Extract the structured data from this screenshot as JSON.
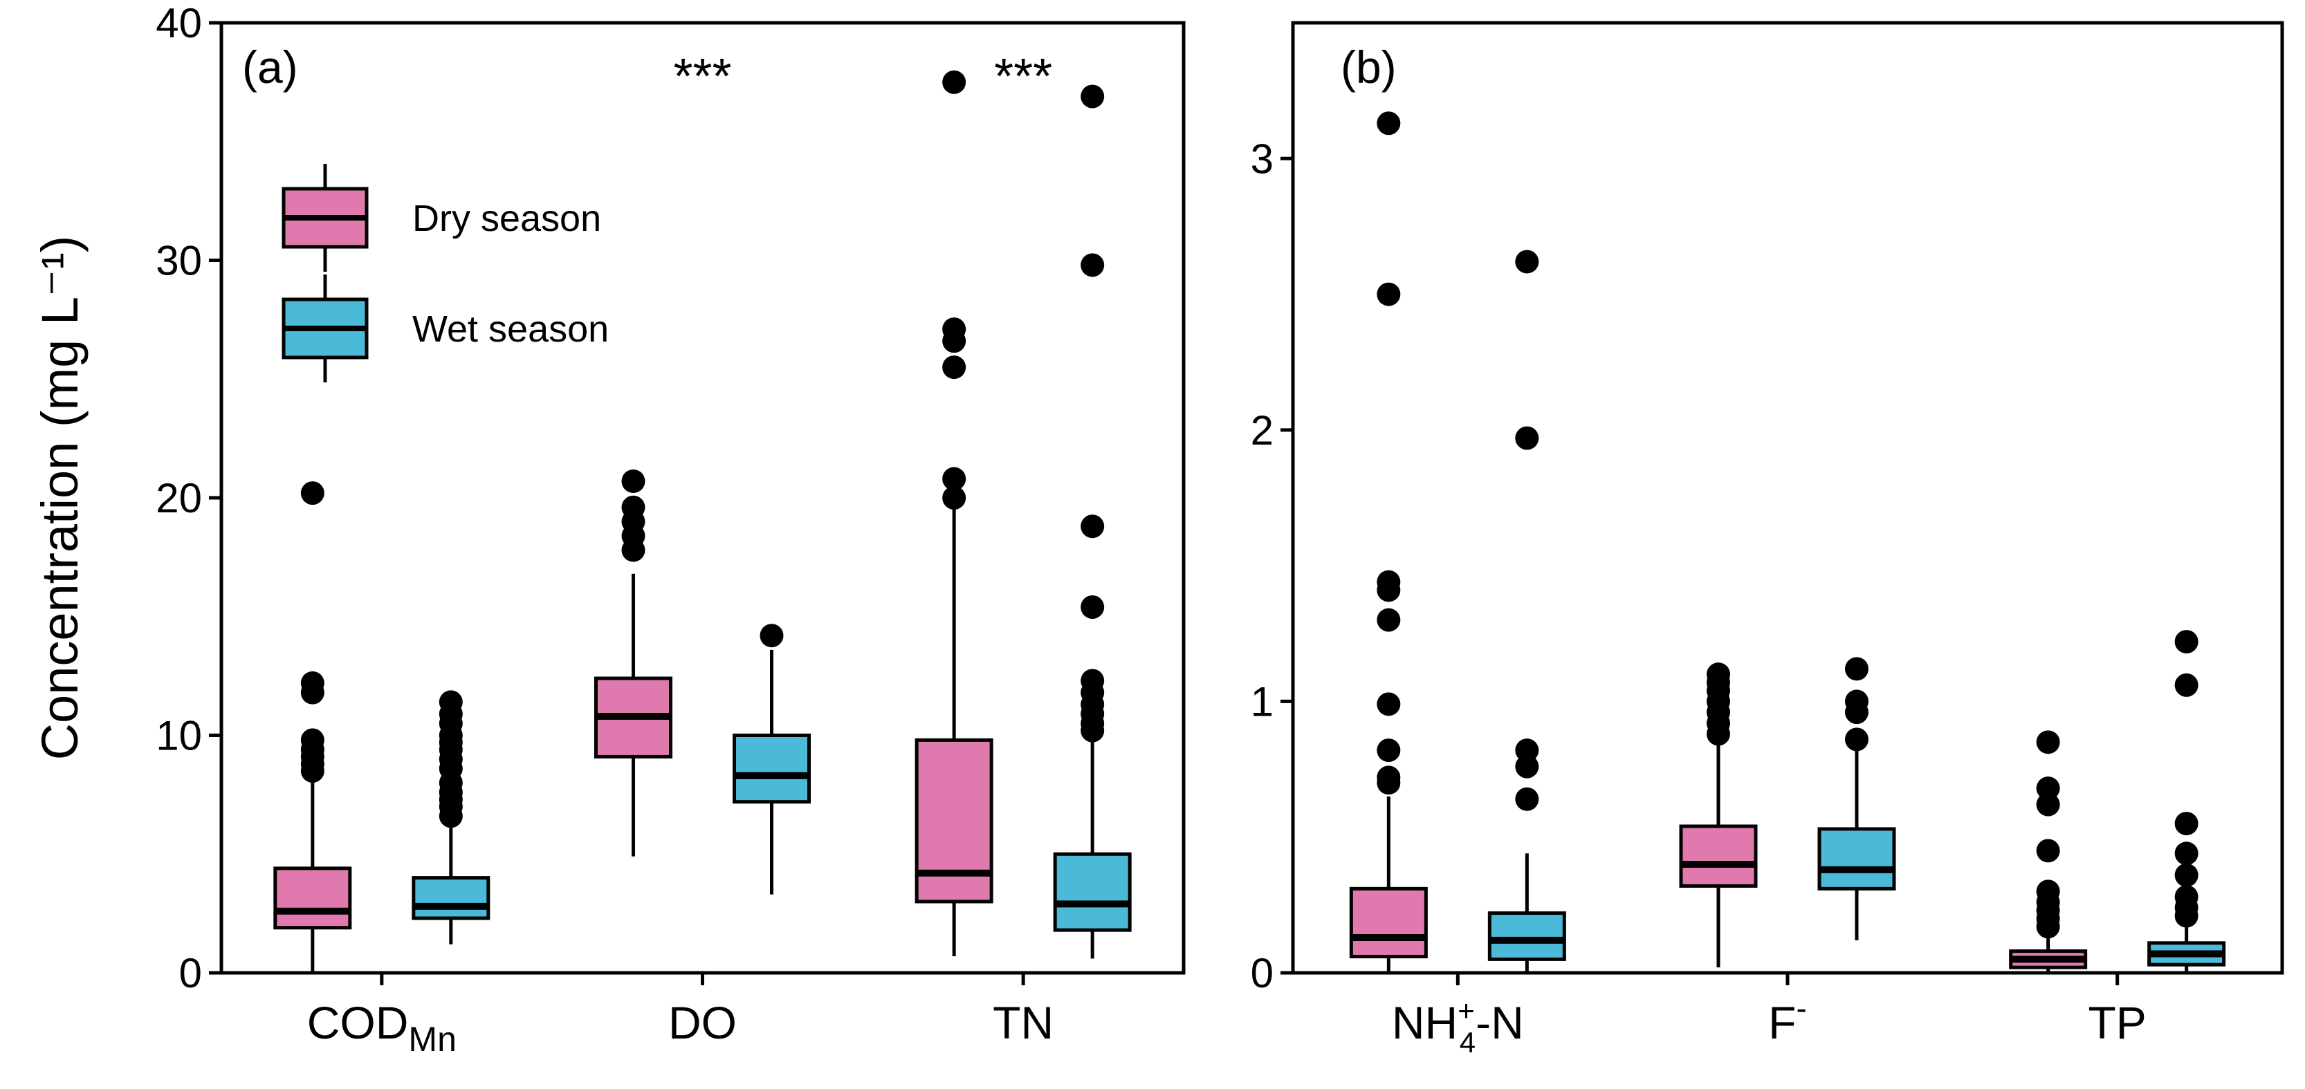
{
  "chart_data": [
    {
      "type": "boxplot",
      "panel_label": "(a)",
      "ylabel": "Concentration (mg L⁻¹)",
      "ylim": [
        0,
        40
      ],
      "yticks": [
        0,
        10,
        20,
        30,
        40
      ],
      "categories": [
        {
          "label": "COD",
          "subscript": "Mn",
          "superscript": ""
        },
        {
          "label": "DO",
          "subscript": "",
          "superscript": ""
        },
        {
          "label": "TN",
          "subscript": "",
          "superscript": ""
        }
      ],
      "series": [
        {
          "name": "Dry season",
          "color": "#E07AAE",
          "boxes": [
            {
              "whisker_low": 0.0,
              "q1": 1.9,
              "median": 2.6,
              "q3": 4.4,
              "whisker_high": 8.2,
              "outliers": [
                8.5,
                8.8,
                9.1,
                9.4,
                9.8,
                11.8,
                12.2,
                20.2
              ]
            },
            {
              "whisker_low": 4.9,
              "q1": 9.1,
              "median": 10.8,
              "q3": 12.4,
              "whisker_high": 16.8,
              "outliers": [
                17.8,
                18.4,
                19.0,
                19.6,
                20.7
              ]
            },
            {
              "whisker_low": 0.7,
              "q1": 3.0,
              "median": 4.2,
              "q3": 9.8,
              "whisker_high": 19.6,
              "outliers": [
                20.0,
                20.8,
                25.5,
                26.6,
                27.1,
                37.5
              ]
            }
          ]
        },
        {
          "name": "Wet season",
          "color": "#4BBAD8",
          "boxes": [
            {
              "whisker_low": 1.2,
              "q1": 2.3,
              "median": 2.8,
              "q3": 4.0,
              "whisker_high": 6.4,
              "outliers": [
                6.6,
                7.0,
                7.3,
                7.6,
                8.0,
                8.6,
                9.0,
                9.4,
                9.7,
                10.0,
                10.5,
                10.9,
                11.4
              ]
            },
            {
              "whisker_low": 3.3,
              "q1": 7.2,
              "median": 8.3,
              "q3": 10.0,
              "whisker_high": 13.6,
              "outliers": [
                14.2
              ]
            },
            {
              "whisker_low": 0.6,
              "q1": 1.8,
              "median": 2.9,
              "q3": 5.0,
              "whisker_high": 9.9,
              "outliers": [
                10.2,
                10.5,
                10.9,
                11.3,
                11.8,
                12.3,
                15.4,
                18.8,
                29.8,
                36.9
              ]
            }
          ]
        }
      ],
      "significance": [
        {
          "category_index": 1,
          "text": "***"
        },
        {
          "category_index": 2,
          "text": "***"
        }
      ],
      "legend": {
        "position": "upper-left",
        "entries": [
          "Dry season",
          "Wet season"
        ]
      }
    },
    {
      "type": "boxplot",
      "panel_label": "(b)",
      "ylabel": "",
      "ylim": [
        0,
        3.5
      ],
      "yticks": [
        0,
        1,
        2,
        3
      ],
      "categories": [
        {
          "label": "NH",
          "subscript": "4",
          "superscript": "+",
          "suffix": "-N"
        },
        {
          "label": "F",
          "subscript": "",
          "superscript": "-",
          "suffix": ""
        },
        {
          "label": "TP",
          "subscript": "",
          "superscript": "",
          "suffix": ""
        }
      ],
      "series": [
        {
          "name": "Dry season",
          "color": "#E07AAE",
          "boxes": [
            {
              "whisker_low": 0.0,
              "q1": 0.06,
              "median": 0.13,
              "q3": 0.31,
              "whisker_high": 0.65,
              "outliers": [
                0.7,
                0.72,
                0.82,
                0.99,
                1.3,
                1.41,
                1.44,
                2.5,
                3.13
              ]
            },
            {
              "whisker_low": 0.02,
              "q1": 0.32,
              "median": 0.4,
              "q3": 0.54,
              "whisker_high": 0.85,
              "outliers": [
                0.88,
                0.92,
                0.96,
                1.0,
                1.04,
                1.07,
                1.1
              ]
            },
            {
              "whisker_low": 0.0,
              "q1": 0.02,
              "median": 0.05,
              "q3": 0.08,
              "whisker_high": 0.14,
              "outliers": [
                0.17,
                0.2,
                0.23,
                0.26,
                0.3,
                0.45,
                0.62,
                0.68,
                0.85
              ]
            }
          ]
        },
        {
          "name": "Wet season",
          "color": "#4BBAD8",
          "boxes": [
            {
              "whisker_low": 0.0,
              "q1": 0.05,
              "median": 0.12,
              "q3": 0.22,
              "whisker_high": 0.44,
              "outliers": [
                0.64,
                0.76,
                0.82,
                1.97,
                2.62
              ]
            },
            {
              "whisker_low": 0.12,
              "q1": 0.31,
              "median": 0.38,
              "q3": 0.53,
              "whisker_high": 0.82,
              "outliers": [
                0.86,
                0.96,
                1.0,
                1.12
              ]
            },
            {
              "whisker_low": 0.0,
              "q1": 0.03,
              "median": 0.07,
              "q3": 0.11,
              "whisker_high": 0.19,
              "outliers": [
                0.21,
                0.24,
                0.28,
                0.36,
                0.44,
                0.55,
                1.06,
                1.22
              ]
            }
          ]
        }
      ],
      "significance": [],
      "legend": null
    }
  ]
}
